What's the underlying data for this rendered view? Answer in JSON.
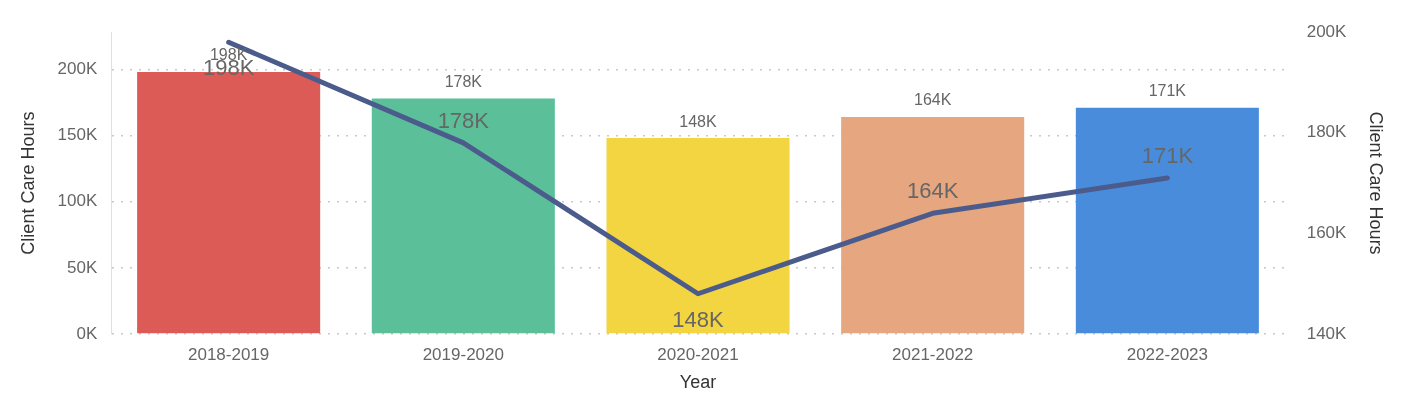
{
  "chart_data": {
    "type": "bar",
    "xlabel": "Year",
    "ylabel": "Client Care Hours",
    "y2label": "Client Care Hours",
    "categories": [
      "2018-2019",
      "2019-2020",
      "2020-2021",
      "2021-2022",
      "2022-2023"
    ],
    "series": [
      {
        "colors": [
          "#dd5b57",
          "#5bbf9a",
          "#f3d441",
          "#e5a680",
          "#4a8cdc"
        ],
        "values": [
          198000,
          178000,
          148000,
          164000,
          171000
        ],
        "value_labels": [
          "198K",
          "178K",
          "148K",
          "164K",
          "171K"
        ]
      },
      {
        "type": "line",
        "axis": "y2",
        "color": "#4b5c8c",
        "values": [
          198000,
          178000,
          148000,
          164000,
          171000
        ],
        "value_labels": [
          "198K",
          "178K",
          "148K",
          "164K",
          "171K"
        ]
      }
    ],
    "ylim": [
      0,
      228000
    ],
    "yticks": [
      {
        "value": 0,
        "label": "0K"
      },
      {
        "value": 50000,
        "label": "50K"
      },
      {
        "value": 100000,
        "label": "100K"
      },
      {
        "value": 150000,
        "label": "150K"
      },
      {
        "value": 200000,
        "label": "200K"
      }
    ],
    "y2lim": [
      140000,
      200000
    ],
    "y2ticks": [
      {
        "value": 140000,
        "label": "140K"
      },
      {
        "value": 160000,
        "label": "160K"
      },
      {
        "value": 180000,
        "label": "180K"
      },
      {
        "value": 200000,
        "label": "200K"
      }
    ],
    "grid": "y",
    "legend": false,
    "marker": "none"
  }
}
